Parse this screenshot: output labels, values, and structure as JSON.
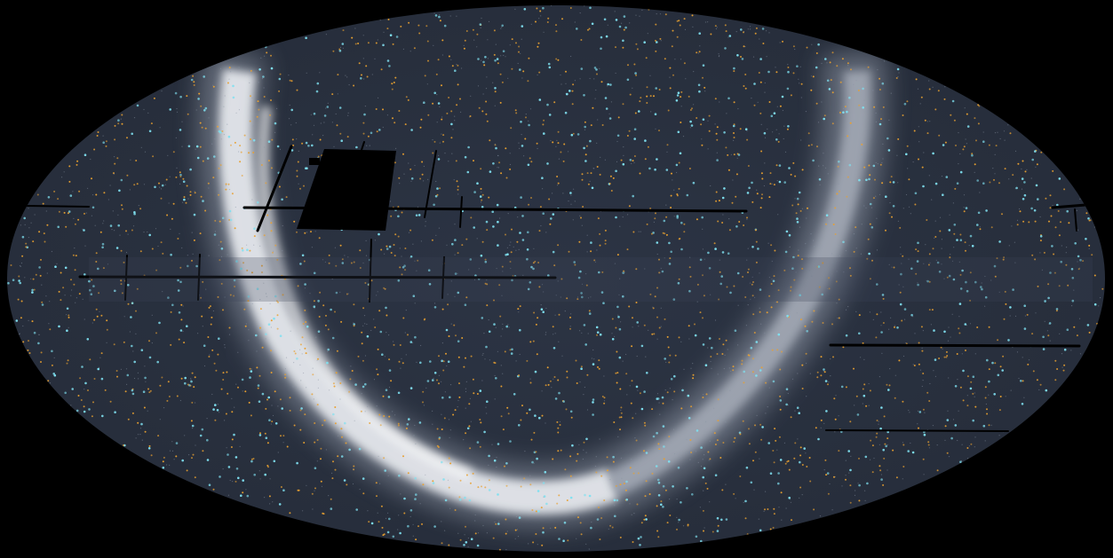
{
  "projection": "mollweide",
  "background_color": "#000000",
  "sky_color": "#2a3140",
  "galactic_band_color": "#e8ecf2",
  "source_colors": {
    "orange": "#e8a030",
    "cyan": "#7fe0f0"
  }
}
